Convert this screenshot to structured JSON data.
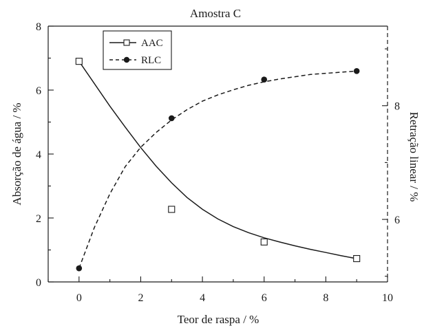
{
  "chart_data": {
    "type": "scatter",
    "title": "Amostra C",
    "xlabel": "Teor de raspa / %",
    "ylabel_left": "Absorção de água / %",
    "ylabel_right": "Retração linear / %",
    "xlim": [
      -1,
      10
    ],
    "ylim_left": [
      0,
      8
    ],
    "ylim_right": [
      4.9,
      9.4
    ],
    "x_ticks": [
      0,
      2,
      4,
      6,
      8,
      10
    ],
    "x_tick_labels": [
      "0",
      "2",
      "4",
      "6",
      "8",
      "10"
    ],
    "y_left_ticks": [
      0,
      2,
      4,
      6,
      8
    ],
    "y_left_tick_labels": [
      "0",
      "2",
      "4",
      "6",
      "8"
    ],
    "y_right_ticks": [
      6,
      8
    ],
    "y_right_tick_labels": [
      "6",
      "8"
    ],
    "legend_position": "top-left",
    "series": [
      {
        "name": "AAC",
        "axis": "left",
        "marker": "open-square",
        "line_style": "solid",
        "x": [
          0,
          3,
          6,
          9
        ],
        "y": [
          6.9,
          2.27,
          1.25,
          0.73
        ],
        "fit_x": [
          0,
          0.5,
          1,
          1.5,
          2,
          2.5,
          3,
          3.5,
          4,
          4.5,
          5,
          5.5,
          6,
          6.5,
          7,
          7.5,
          8,
          8.5,
          9
        ],
        "fit_y": [
          6.9,
          6.2,
          5.5,
          4.84,
          4.2,
          3.62,
          3.1,
          2.64,
          2.27,
          1.97,
          1.73,
          1.54,
          1.38,
          1.25,
          1.13,
          1.02,
          0.92,
          0.82,
          0.73
        ]
      },
      {
        "name": "RLC",
        "axis": "right",
        "marker": "filled-circle",
        "line_style": "dashed",
        "x": [
          0,
          3,
          6,
          9
        ],
        "y": [
          5.14,
          7.78,
          8.46,
          8.61
        ],
        "fit_x": [
          0,
          0.5,
          1,
          1.5,
          2,
          2.5,
          3,
          3.5,
          4,
          4.5,
          5,
          5.5,
          6,
          6.5,
          7,
          7.5,
          8,
          8.5,
          9
        ],
        "fit_y": [
          5.14,
          5.86,
          6.45,
          6.93,
          7.27,
          7.53,
          7.75,
          7.93,
          8.08,
          8.19,
          8.28,
          8.36,
          8.42,
          8.47,
          8.51,
          8.55,
          8.57,
          8.59,
          8.61
        ]
      }
    ]
  }
}
